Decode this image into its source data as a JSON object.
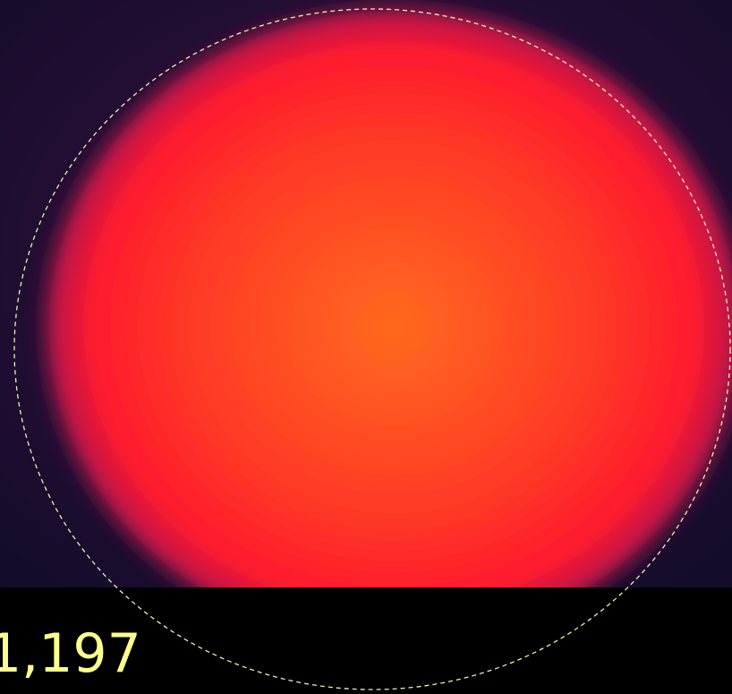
{
  "readout": {
    "value": "1,197"
  }
}
